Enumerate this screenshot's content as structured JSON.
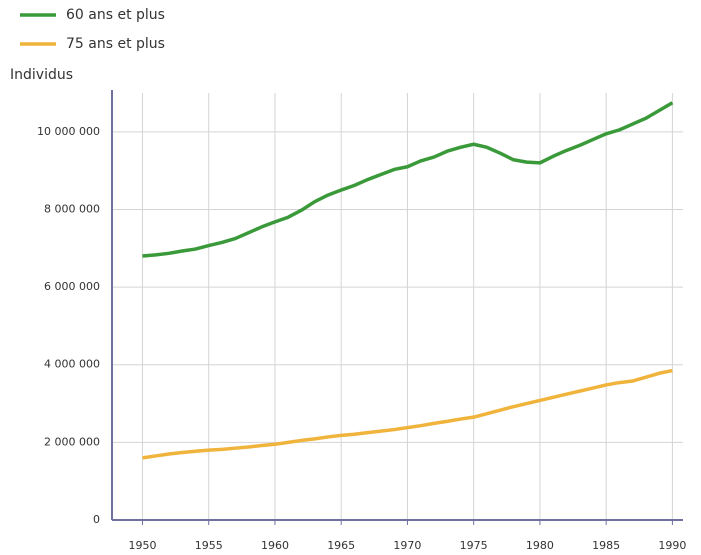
{
  "chart_data": {
    "type": "line",
    "y_label": "Individus",
    "x": [
      1950,
      1951,
      1952,
      1953,
      1954,
      1955,
      1956,
      1957,
      1958,
      1959,
      1960,
      1961,
      1962,
      1963,
      1964,
      1965,
      1966,
      1967,
      1968,
      1969,
      1970,
      1971,
      1972,
      1973,
      1974,
      1975,
      1976,
      1977,
      1978,
      1979,
      1980,
      1981,
      1982,
      1983,
      1984,
      1985,
      1986,
      1987,
      1988,
      1989,
      1990
    ],
    "series": [
      {
        "name": "60 ans et plus",
        "color": "#3a9a3a",
        "values": [
          6800000,
          6830000,
          6870000,
          6930000,
          6980000,
          7070000,
          7150000,
          7250000,
          7400000,
          7550000,
          7680000,
          7800000,
          7980000,
          8200000,
          8370000,
          8500000,
          8620000,
          8770000,
          8900000,
          9030000,
          9100000,
          9250000,
          9350000,
          9500000,
          9600000,
          9680000,
          9600000,
          9450000,
          9280000,
          9220000,
          9200000,
          9370000,
          9520000,
          9650000,
          9800000,
          9950000,
          10050000,
          10200000,
          10350000,
          10550000,
          10750000
        ]
      },
      {
        "name": "75 ans et plus",
        "color": "#f0b43c",
        "values": [
          1600000,
          1650000,
          1700000,
          1740000,
          1770000,
          1800000,
          1820000,
          1850000,
          1880000,
          1920000,
          1950000,
          2000000,
          2050000,
          2090000,
          2140000,
          2180000,
          2210000,
          2250000,
          2290000,
          2330000,
          2380000,
          2430000,
          2490000,
          2540000,
          2600000,
          2650000,
          2740000,
          2830000,
          2920000,
          3000000,
          3080000,
          3160000,
          3240000,
          3320000,
          3400000,
          3480000,
          3540000,
          3580000,
          3680000,
          3780000,
          3850000
        ]
      }
    ],
    "xlim": [
      1947.7,
      1990.8
    ],
    "xticks": [
      1950,
      1955,
      1960,
      1965,
      1970,
      1975,
      1980,
      1985,
      1990
    ],
    "ylim": [
      0,
      11000000
    ],
    "yticks": [
      0,
      {
        "value": 2000000,
        "label": "2 000 000"
      },
      {
        "value": 4000000,
        "label": "4 000 000"
      },
      {
        "value": 6000000,
        "label": "6 000 000"
      },
      {
        "value": 8000000,
        "label": "8 000 000"
      },
      {
        "value": 10000000,
        "label": "10 000 000"
      }
    ],
    "grid": true
  }
}
